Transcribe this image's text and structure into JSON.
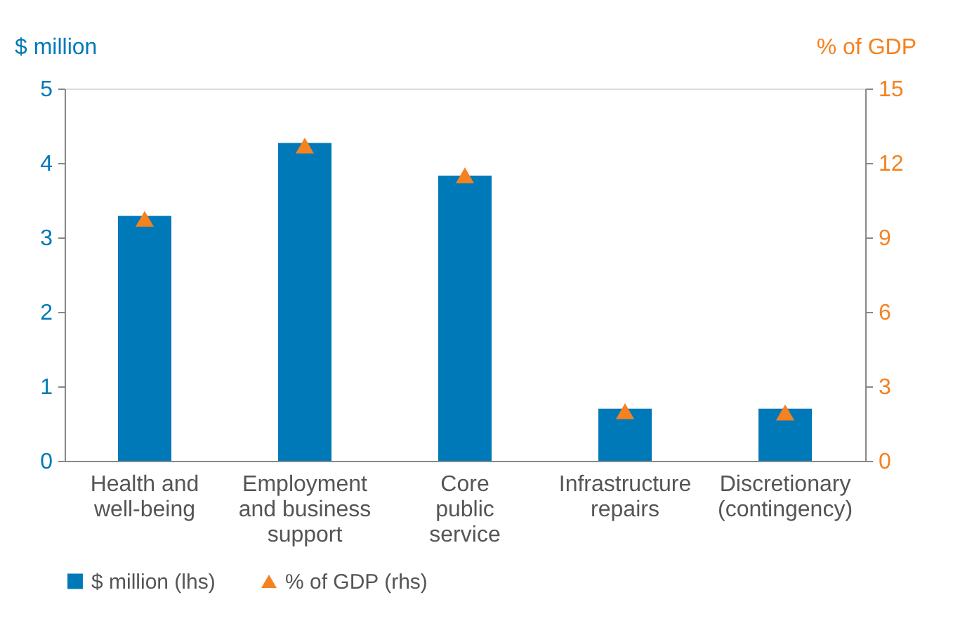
{
  "chart_data": {
    "type": "bar",
    "categories": [
      "Health and\nwell-being",
      "Employment\nand business\nsupport",
      "Core\npublic\nservice",
      "Infrastructure\nrepairs",
      "Discretionary\n(contingency)"
    ],
    "series": [
      {
        "name": "$ million (lhs)",
        "color": "#0079b8",
        "values": [
          3.29,
          4.27,
          3.83,
          0.7,
          0.7
        ]
      },
      {
        "name": "% of GDP (rhs)",
        "color": "#f58220",
        "type": "scatter",
        "axis": "y2",
        "marker": "triangle",
        "values": [
          9.75,
          12.7,
          11.5,
          2.0,
          1.95
        ]
      }
    ],
    "ylabel": "$ million",
    "y2label": "% of GDP",
    "ylim": [
      0,
      5
    ],
    "yticks": [
      0,
      1,
      2,
      3,
      4,
      5
    ],
    "y2lim": [
      0,
      15
    ],
    "y2ticks": [
      0,
      3,
      6,
      9,
      12,
      15
    ],
    "grid": false,
    "legend": "bottom"
  }
}
